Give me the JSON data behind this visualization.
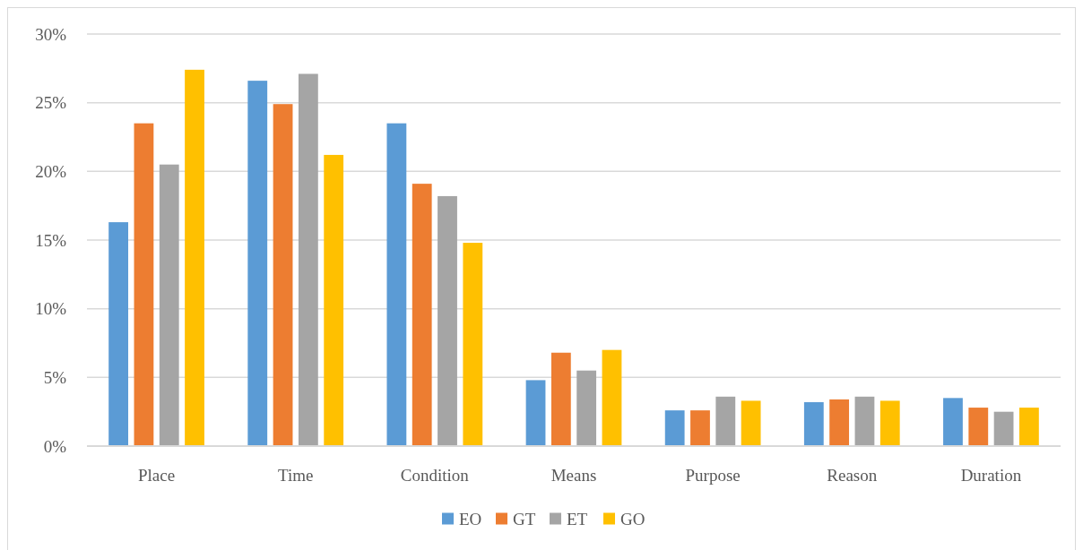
{
  "chart_data": {
    "type": "bar",
    "categories": [
      "Place",
      "Time",
      "Condition",
      "Means",
      "Purpose",
      "Reason",
      "Duration"
    ],
    "series": [
      {
        "name": "EO",
        "color": "#5b9bd5",
        "values": [
          16.3,
          26.6,
          23.5,
          4.8,
          2.6,
          3.2,
          3.5
        ]
      },
      {
        "name": "GT",
        "color": "#ed7d31",
        "values": [
          23.5,
          24.9,
          19.1,
          6.8,
          2.6,
          3.4,
          2.8
        ]
      },
      {
        "name": "ET",
        "color": "#a5a5a5",
        "values": [
          20.5,
          27.1,
          18.2,
          5.5,
          3.6,
          3.6,
          2.5
        ]
      },
      {
        "name": "GO",
        "color": "#ffc000",
        "values": [
          27.4,
          21.2,
          14.8,
          7.0,
          3.3,
          3.3,
          2.8
        ]
      }
    ],
    "ylim": [
      0,
      30
    ],
    "yticks": [
      {
        "value": 0,
        "label": "0%"
      },
      {
        "value": 5,
        "label": "5%"
      },
      {
        "value": 10,
        "label": "10%"
      },
      {
        "value": 15,
        "label": "15%"
      },
      {
        "value": 20,
        "label": "20%"
      },
      {
        "value": 25,
        "label": "25%"
      },
      {
        "value": 30,
        "label": "30%"
      }
    ],
    "grid": "y",
    "legend": "bottom"
  }
}
